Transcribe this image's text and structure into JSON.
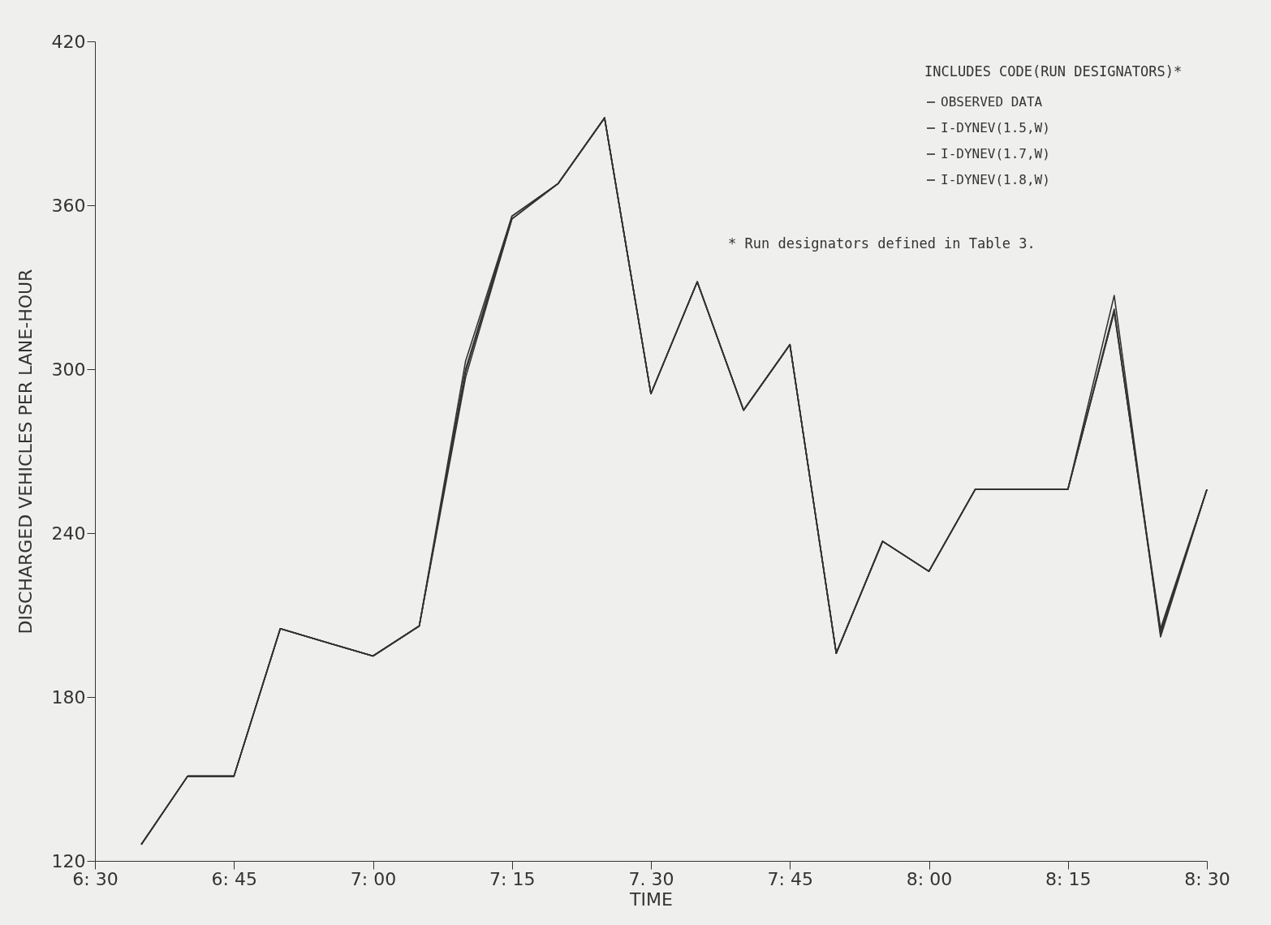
{
  "chart_data": {
    "type": "line",
    "xlabel": "TIME",
    "ylabel": "DISCHARGED VEHICLES PER LANE-HOUR",
    "legend_title": "INCLUDES CODE(RUN DESIGNATORS)*",
    "annotations": [
      "* Run designators defined in Table 3."
    ],
    "categories": [
      "6: 30",
      null,
      null,
      "6: 45",
      null,
      null,
      "7: 00",
      null,
      null,
      "7: 15",
      null,
      null,
      "7. 30",
      null,
      null,
      "7: 45",
      null,
      null,
      "8: 00",
      null,
      null,
      "8: 15",
      null,
      null,
      "8: 30"
    ],
    "ylim": [
      120,
      420
    ],
    "yticks": [
      120,
      180,
      240,
      300,
      360,
      420
    ],
    "grid": false,
    "legend": "top right",
    "marker": "none",
    "line_style": "solid",
    "series": [
      {
        "name": "OBSERVED DATA",
        "color": "#333333",
        "values": [
          null,
          126,
          151,
          151,
          205,
          200,
          195,
          206,
          303,
          356,
          368,
          392,
          291,
          332,
          285,
          309,
          196,
          237,
          226,
          256,
          256,
          256,
          327,
          202,
          256
        ]
      },
      {
        "name": "I-DYNEV(1.5,W)",
        "color": "#333333",
        "values": [
          null,
          126,
          151,
          151,
          205,
          200,
          195,
          206,
          297,
          355,
          368,
          392,
          291,
          332,
          285,
          309,
          196,
          237,
          226,
          256,
          256,
          256,
          321,
          205,
          256
        ]
      },
      {
        "name": "I-DYNEV(1.7,W)",
        "color": "#333333",
        "values": [
          null,
          126,
          151,
          151,
          205,
          200,
          195,
          206,
          299,
          355,
          368,
          392,
          291,
          332,
          285,
          309,
          196,
          237,
          226,
          256,
          256,
          256,
          321,
          204,
          256
        ]
      },
      {
        "name": "I-DYNEV(1.8,W)",
        "color": "#333333",
        "values": [
          null,
          126,
          151,
          151,
          205,
          200,
          195,
          206,
          300,
          356,
          368,
          392,
          291,
          332,
          285,
          309,
          196,
          237,
          226,
          256,
          256,
          256,
          322,
          203,
          256
        ]
      }
    ]
  }
}
